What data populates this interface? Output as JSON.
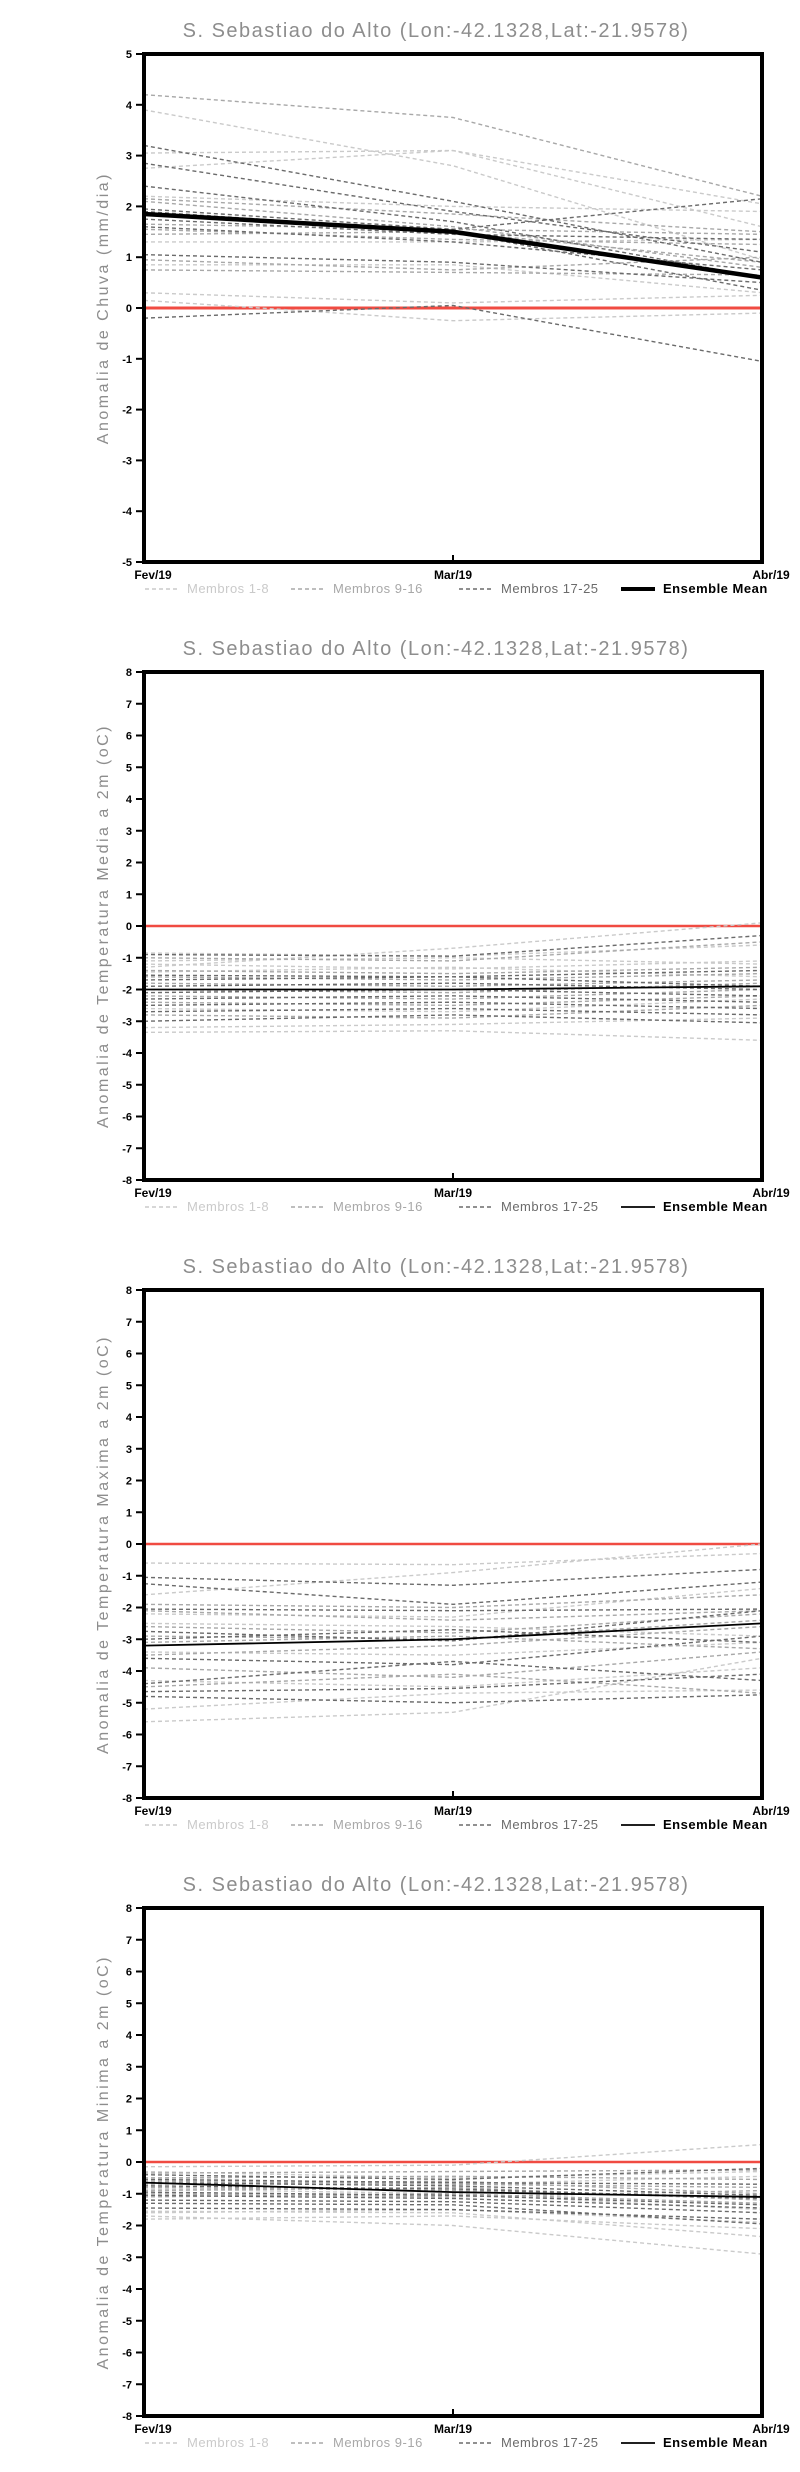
{
  "colors": {
    "membros_1_8": "#cacaca",
    "membros_9_16": "#a8a8a8",
    "membros_17_25": "#6b6b6b",
    "ensemble_mean": "#000000",
    "zero_line": "#f04b42",
    "title_text": "#8d8d8d",
    "axis_text": "#000000"
  },
  "chart_data": [
    {
      "type": "line",
      "title": "S. Sebastiao do Alto (Lon:-42.1328,Lat:-21.9578)",
      "ylabel": "Anomalia de Chuva (mm/dia)",
      "xlabel": "",
      "x": [
        "Fev/19",
        "Mar/19",
        "Abr/19"
      ],
      "ylim": [
        -5,
        5
      ],
      "y_tick_step": 1,
      "grid": false,
      "legend_position": "bottom",
      "legend": [
        "Membros 1-8",
        "Membros 9-16",
        "Membros 17-25",
        "Ensemble Mean"
      ],
      "zero_line": {
        "value": 0
      },
      "series": [
        {
          "name": "Membro 1",
          "group": "1-8",
          "values": [
            3.9,
            2.8,
            0.95
          ]
        },
        {
          "name": "Membro 2",
          "group": "1-8",
          "values": [
            3.05,
            3.1,
            1.6
          ]
        },
        {
          "name": "Membro 3",
          "group": "1-8",
          "values": [
            2.75,
            3.1,
            2.05
          ]
        },
        {
          "name": "Membro 4",
          "group": "1-8",
          "values": [
            2.2,
            2.0,
            1.9
          ]
        },
        {
          "name": "Membro 5",
          "group": "1-8",
          "values": [
            1.3,
            1.3,
            1.35
          ]
        },
        {
          "name": "Membro 6",
          "group": "1-8",
          "values": [
            0.3,
            0.1,
            0.25
          ]
        },
        {
          "name": "Membro 7",
          "group": "1-8",
          "values": [
            0.15,
            -0.25,
            -0.1
          ]
        },
        {
          "name": "Membro 8",
          "group": "1-8",
          "values": [
            0.85,
            0.85,
            0.3
          ]
        },
        {
          "name": "Membro 9",
          "group": "9-16",
          "values": [
            4.2,
            3.75,
            2.2
          ]
        },
        {
          "name": "Membro 10",
          "group": "9-16",
          "values": [
            2.15,
            1.85,
            1.5
          ]
        },
        {
          "name": "Membro 11",
          "group": "9-16",
          "values": [
            1.55,
            1.35,
            1.25
          ]
        },
        {
          "name": "Membro 12",
          "group": "9-16",
          "values": [
            1.45,
            1.5,
            0.9
          ]
        },
        {
          "name": "Membro 13",
          "group": "9-16",
          "values": [
            0.95,
            0.75,
            1.0
          ]
        },
        {
          "name": "Membro 14",
          "group": "9-16",
          "values": [
            2.1,
            1.6,
            0.8
          ]
        },
        {
          "name": "Membro 15",
          "group": "9-16",
          "values": [
            1.65,
            1.55,
            1.45
          ]
        },
        {
          "name": "Membro 16",
          "group": "9-16",
          "values": [
            0.75,
            0.7,
            0.65
          ]
        },
        {
          "name": "Membro 17",
          "group": "17-25",
          "values": [
            3.2,
            2.1,
            0.9
          ]
        },
        {
          "name": "Membro 18",
          "group": "17-25",
          "values": [
            2.85,
            1.9,
            1.1
          ]
        },
        {
          "name": "Membro 19",
          "group": "17-25",
          "values": [
            2.4,
            1.7,
            0.6
          ]
        },
        {
          "name": "Membro 20",
          "group": "17-25",
          "values": [
            1.95,
            1.55,
            2.15
          ]
        },
        {
          "name": "Membro 21",
          "group": "17-25",
          "values": [
            1.9,
            1.5,
            0.35
          ]
        },
        {
          "name": "Membro 22",
          "group": "17-25",
          "values": [
            1.75,
            1.45,
            1.35
          ]
        },
        {
          "name": "Membro 23",
          "group": "17-25",
          "values": [
            1.6,
            1.3,
            0.75
          ]
        },
        {
          "name": "Membro 24",
          "group": "17-25",
          "values": [
            1.05,
            0.9,
            0.5
          ]
        },
        {
          "name": "Membro 25",
          "group": "17-25",
          "values": [
            -0.2,
            0.05,
            -1.05
          ]
        }
      ],
      "mean": {
        "name": "Ensemble Mean",
        "values": [
          1.85,
          1.5,
          0.6
        ],
        "style": "thick"
      }
    },
    {
      "type": "line",
      "title": "S. Sebastiao do Alto (Lon:-42.1328,Lat:-21.9578)",
      "ylabel": "Anomalia de Temperatura Media a 2m (oC)",
      "xlabel": "",
      "x": [
        "Fev/19",
        "Mar/19",
        "Abr/19"
      ],
      "ylim": [
        -8,
        8
      ],
      "y_tick_step": 1,
      "grid": false,
      "legend_position": "bottom",
      "legend": [
        "Membros 1-8",
        "Membros 9-16",
        "Membros 17-25",
        "Ensemble Mean"
      ],
      "zero_line": {
        "value": 0
      },
      "series": [
        {
          "name": "Membro 1",
          "group": "1-8",
          "values": [
            -0.85,
            -0.95,
            -0.6
          ]
        },
        {
          "name": "Membro 2",
          "group": "1-8",
          "values": [
            -1.2,
            -1.35,
            -1.1
          ]
        },
        {
          "name": "Membro 3",
          "group": "1-8",
          "values": [
            -1.3,
            -0.7,
            0.1
          ]
        },
        {
          "name": "Membro 4",
          "group": "1-8",
          "values": [
            -1.45,
            -1.3,
            -1.6
          ]
        },
        {
          "name": "Membro 5",
          "group": "1-8",
          "values": [
            -3.2,
            -3.1,
            -2.9
          ]
        },
        {
          "name": "Membro 6",
          "group": "1-8",
          "values": [
            -3.35,
            -3.3,
            -3.6
          ]
        },
        {
          "name": "Membro 7",
          "group": "1-8",
          "values": [
            -1.1,
            -1.0,
            -1.2
          ]
        },
        {
          "name": "Membro 8",
          "group": "1-8",
          "values": [
            -2.6,
            -2.7,
            -2.3
          ]
        },
        {
          "name": "Membro 9",
          "group": "9-16",
          "values": [
            -1.0,
            -1.1,
            -0.5
          ]
        },
        {
          "name": "Membro 10",
          "group": "9-16",
          "values": [
            -1.6,
            -1.7,
            -1.5
          ]
        },
        {
          "name": "Membro 11",
          "group": "9-16",
          "values": [
            -1.8,
            -1.9,
            -1.7
          ]
        },
        {
          "name": "Membro 12",
          "group": "9-16",
          "values": [
            -2.0,
            -2.1,
            -1.8
          ]
        },
        {
          "name": "Membro 13",
          "group": "9-16",
          "values": [
            -2.2,
            -2.3,
            -2.0
          ]
        },
        {
          "name": "Membro 14",
          "group": "9-16",
          "values": [
            -2.4,
            -2.5,
            -2.2
          ]
        },
        {
          "name": "Membro 15",
          "group": "9-16",
          "values": [
            -2.8,
            -2.9,
            -2.5
          ]
        },
        {
          "name": "Membro 16",
          "group": "9-16",
          "values": [
            -1.4,
            -1.5,
            -1.3
          ]
        },
        {
          "name": "Membro 17",
          "group": "17-25",
          "values": [
            -0.9,
            -0.95,
            -0.3
          ]
        },
        {
          "name": "Membro 18",
          "group": "17-25",
          "values": [
            -1.55,
            -1.6,
            -1.4
          ]
        },
        {
          "name": "Membro 19",
          "group": "17-25",
          "values": [
            -1.7,
            -1.6,
            -1.9
          ]
        },
        {
          "name": "Membro 20",
          "group": "17-25",
          "values": [
            -1.9,
            -1.8,
            -2.0
          ]
        },
        {
          "name": "Membro 21",
          "group": "17-25",
          "values": [
            -2.1,
            -2.0,
            -2.2
          ]
        },
        {
          "name": "Membro 22",
          "group": "17-25",
          "values": [
            -2.3,
            -2.2,
            -2.4
          ]
        },
        {
          "name": "Membro 23",
          "group": "17-25",
          "values": [
            -2.5,
            -2.4,
            -2.6
          ]
        },
        {
          "name": "Membro 24",
          "group": "17-25",
          "values": [
            -2.7,
            -2.6,
            -2.8
          ]
        },
        {
          "name": "Membro 25",
          "group": "17-25",
          "values": [
            -3.0,
            -2.8,
            -3.05
          ]
        }
      ],
      "mean": {
        "name": "Ensemble Mean",
        "values": [
          -2.0,
          -2.0,
          -1.9
        ],
        "style": "thin"
      }
    },
    {
      "type": "line",
      "title": "S. Sebastiao do Alto (Lon:-42.1328,Lat:-21.9578)",
      "ylabel": "Anomalia de Temperatura Maxima a 2m (oC)",
      "xlabel": "",
      "x": [
        "Fev/19",
        "Mar/19",
        "Abr/19"
      ],
      "ylim": [
        -8,
        8
      ],
      "y_tick_step": 1,
      "grid": false,
      "legend_position": "bottom",
      "legend": [
        "Membros 1-8",
        "Membros 9-16",
        "Membros 17-25",
        "Ensemble Mean"
      ],
      "zero_line": {
        "value": 0
      },
      "series": [
        {
          "name": "Membro 1",
          "group": "1-8",
          "values": [
            -0.6,
            -0.65,
            -0.3
          ]
        },
        {
          "name": "Membro 2",
          "group": "1-8",
          "values": [
            -1.6,
            -0.9,
            0.0
          ]
        },
        {
          "name": "Membro 3",
          "group": "1-8",
          "values": [
            -2.2,
            -2.3,
            -1.4
          ]
        },
        {
          "name": "Membro 4",
          "group": "1-8",
          "values": [
            -2.5,
            -2.6,
            -2.9
          ]
        },
        {
          "name": "Membro 5",
          "group": "1-8",
          "values": [
            -3.4,
            -3.5,
            -3.1
          ]
        },
        {
          "name": "Membro 6",
          "group": "1-8",
          "values": [
            -4.3,
            -4.5,
            -3.9
          ]
        },
        {
          "name": "Membro 7",
          "group": "1-8",
          "values": [
            -5.2,
            -4.7,
            -4.6
          ]
        },
        {
          "name": "Membro 8",
          "group": "1-8",
          "values": [
            -5.6,
            -5.3,
            -3.6
          ]
        },
        {
          "name": "Membro 9",
          "group": "9-16",
          "values": [
            -1.9,
            -2.0,
            -1.6
          ]
        },
        {
          "name": "Membro 10",
          "group": "9-16",
          "values": [
            -2.1,
            -2.4,
            -2.1
          ]
        },
        {
          "name": "Membro 11",
          "group": "9-16",
          "values": [
            -2.6,
            -2.8,
            -2.2
          ]
        },
        {
          "name": "Membro 12",
          "group": "9-16",
          "values": [
            -2.9,
            -3.0,
            -2.4
          ]
        },
        {
          "name": "Membro 13",
          "group": "9-16",
          "values": [
            -3.1,
            -2.9,
            -3.3
          ]
        },
        {
          "name": "Membro 14",
          "group": "9-16",
          "values": [
            -3.5,
            -3.2,
            -2.6
          ]
        },
        {
          "name": "Membro 15",
          "group": "9-16",
          "values": [
            -3.9,
            -4.2,
            -3.4
          ]
        },
        {
          "name": "Membro 16",
          "group": "9-16",
          "values": [
            -4.5,
            -4.1,
            -4.7
          ]
        },
        {
          "name": "Membro 17",
          "group": "17-25",
          "values": [
            -1.05,
            -1.3,
            -0.8
          ]
        },
        {
          "name": "Membro 18",
          "group": "17-25",
          "values": [
            -1.25,
            -1.9,
            -1.2
          ]
        },
        {
          "name": "Membro 19",
          "group": "17-25",
          "values": [
            -2.05,
            -2.1,
            -2.05
          ]
        },
        {
          "name": "Membro 20",
          "group": "17-25",
          "values": [
            -2.75,
            -3.05,
            -2.1
          ]
        },
        {
          "name": "Membro 21",
          "group": "17-25",
          "values": [
            -3.0,
            -2.7,
            -3.1
          ]
        },
        {
          "name": "Membro 22",
          "group": "17-25",
          "values": [
            -3.6,
            -3.8,
            -2.9
          ]
        },
        {
          "name": "Membro 23",
          "group": "17-25",
          "values": [
            -4.4,
            -3.7,
            -4.3
          ]
        },
        {
          "name": "Membro 24",
          "group": "17-25",
          "values": [
            -4.65,
            -4.55,
            -4.1
          ]
        },
        {
          "name": "Membro 25",
          "group": "17-25",
          "values": [
            -4.8,
            -5.0,
            -4.75
          ]
        }
      ],
      "mean": {
        "name": "Ensemble Mean",
        "values": [
          -3.2,
          -3.0,
          -2.5
        ],
        "style": "thin"
      }
    },
    {
      "type": "line",
      "title": "S. Sebastiao do Alto (Lon:-42.1328,Lat:-21.9578)",
      "ylabel": "Anomalia de Temperatura Minima a 2m (oC)",
      "xlabel": "",
      "x": [
        "Fev/19",
        "Mar/19",
        "Abr/19"
      ],
      "ylim": [
        -8,
        8
      ],
      "y_tick_step": 1,
      "grid": false,
      "legend_position": "bottom",
      "legend": [
        "Membros 1-8",
        "Membros 9-16",
        "Membros 17-25",
        "Ensemble Mean"
      ],
      "zero_line": {
        "value": 0
      },
      "series": [
        {
          "name": "Membro 1",
          "group": "1-8",
          "values": [
            -0.15,
            -0.1,
            0.55
          ]
        },
        {
          "name": "Membro 2",
          "group": "1-8",
          "values": [
            -0.3,
            -0.5,
            -0.3
          ]
        },
        {
          "name": "Membro 3",
          "group": "1-8",
          "values": [
            -1.55,
            -1.6,
            -2.35
          ]
        },
        {
          "name": "Membro 4",
          "group": "1-8",
          "values": [
            -1.7,
            -2.0,
            -2.9
          ]
        },
        {
          "name": "Membro 5",
          "group": "1-8",
          "values": [
            -0.5,
            -0.7,
            -0.45
          ]
        },
        {
          "name": "Membro 6",
          "group": "1-8",
          "values": [
            -1.6,
            -1.5,
            -1.9
          ]
        },
        {
          "name": "Membro 7",
          "group": "1-8",
          "values": [
            -0.85,
            -1.0,
            -1.5
          ]
        },
        {
          "name": "Membro 8",
          "group": "1-8",
          "values": [
            -1.8,
            -1.7,
            -2.1
          ]
        },
        {
          "name": "Membro 9",
          "group": "9-16",
          "values": [
            -0.35,
            -0.3,
            -0.25
          ]
        },
        {
          "name": "Membro 10",
          "group": "9-16",
          "values": [
            -0.5,
            -0.45,
            -0.55
          ]
        },
        {
          "name": "Membro 11",
          "group": "9-16",
          "values": [
            -0.6,
            -0.7,
            -0.8
          ]
        },
        {
          "name": "Membro 12",
          "group": "9-16",
          "values": [
            -0.7,
            -0.6,
            -1.0
          ]
        },
        {
          "name": "Membro 13",
          "group": "9-16",
          "values": [
            -0.8,
            -0.9,
            -1.1
          ]
        },
        {
          "name": "Membro 14",
          "group": "9-16",
          "values": [
            -0.9,
            -0.8,
            -1.2
          ]
        },
        {
          "name": "Membro 15",
          "group": "9-16",
          "values": [
            -1.0,
            -1.1,
            -0.9
          ]
        },
        {
          "name": "Membro 16",
          "group": "9-16",
          "values": [
            -1.1,
            -1.0,
            -1.3
          ]
        },
        {
          "name": "Membro 17",
          "group": "17-25",
          "values": [
            -0.4,
            -0.55,
            -0.2
          ]
        },
        {
          "name": "Membro 18",
          "group": "17-25",
          "values": [
            -0.55,
            -0.65,
            -0.7
          ]
        },
        {
          "name": "Membro 19",
          "group": "17-25",
          "values": [
            -0.65,
            -0.75,
            -1.05
          ]
        },
        {
          "name": "Membro 20",
          "group": "17-25",
          "values": [
            -0.75,
            -0.85,
            -1.15
          ]
        },
        {
          "name": "Membro 21",
          "group": "17-25",
          "values": [
            -0.95,
            -1.05,
            -1.35
          ]
        },
        {
          "name": "Membro 22",
          "group": "17-25",
          "values": [
            -1.05,
            -1.15,
            -1.45
          ]
        },
        {
          "name": "Membro 23",
          "group": "17-25",
          "values": [
            -1.2,
            -1.25,
            -1.6
          ]
        },
        {
          "name": "Membro 24",
          "group": "17-25",
          "values": [
            -1.3,
            -1.35,
            -1.95
          ]
        },
        {
          "name": "Membro 25",
          "group": "17-25",
          "values": [
            -1.45,
            -1.5,
            -1.8
          ]
        }
      ],
      "mean": {
        "name": "Ensemble Mean",
        "values": [
          -0.65,
          -0.95,
          -1.1
        ],
        "style": "thin"
      }
    }
  ]
}
